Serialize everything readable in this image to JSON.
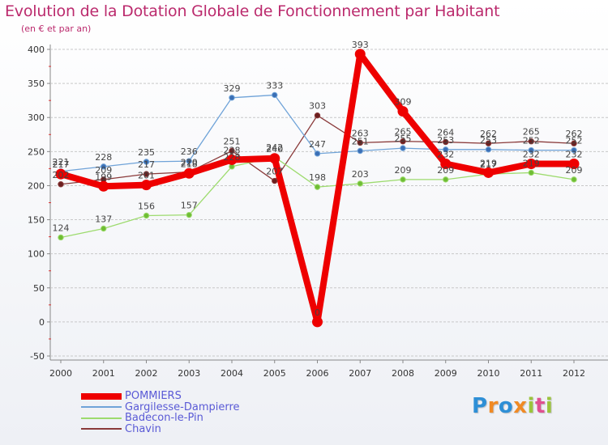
{
  "title": "Evolution de la Dotation Globale de Fonctionnement par Habitant",
  "subtitle": "(en € et par an)",
  "logo": {
    "text": "Proxiti",
    "colors": [
      "#2e8fd6",
      "#f08a24",
      "#2e8fd6",
      "#f08a24",
      "#9bc43c",
      "#e05090",
      "#9bc43c"
    ]
  },
  "chart_data": {
    "type": "line",
    "title": "Evolution de la Dotation Globale de Fonctionnement par Habitant",
    "subtitle": "(en € et par an)",
    "xlabel": "",
    "ylabel": "",
    "ylim": [
      -50,
      400
    ],
    "yticks": [
      -50,
      0,
      50,
      100,
      150,
      200,
      250,
      300,
      350,
      400
    ],
    "x": [
      "2000",
      "2001",
      "2002",
      "2003",
      "2004",
      "2005",
      "2006",
      "2007",
      "2008",
      "2009",
      "2010",
      "2011",
      "2012"
    ],
    "grid": "horizontal",
    "legend_position": "bottom",
    "series": [
      {
        "name": "POMMIERS",
        "color": "#ee0000",
        "emphasis": true,
        "values": [
          217,
          199,
          201,
          218,
          238,
          240,
          0,
          393,
          309,
          232,
          219,
          232,
          232
        ],
        "labels": [
          "217",
          "199",
          "201",
          "218",
          "238",
          "240",
          "0",
          "393",
          "309",
          "232",
          "219",
          "232",
          "232"
        ]
      },
      {
        "name": "Gargilesse-Dampierre",
        "color": "#6fa3d8",
        "point": "#3b6fb5",
        "values": [
          221,
          228,
          235,
          236,
          329,
          333,
          247,
          251,
          255,
          253,
          253,
          252,
          252
        ],
        "labels": [
          "221",
          "228",
          "235",
          "236",
          "329",
          "333",
          "247",
          "251",
          "255",
          "253",
          "253",
          "252",
          "252"
        ]
      },
      {
        "name": "Badecon-le-Pin",
        "color": "#9ddb6e",
        "point": "#6fbd34",
        "values": [
          124,
          137,
          156,
          157,
          228,
          242,
          198,
          203,
          209,
          209,
          217,
          219,
          209
        ],
        "labels": [
          "124",
          "137",
          "156",
          "157",
          "228",
          "242",
          "198",
          "203",
          "209",
          "209",
          "217",
          "219",
          "209"
        ]
      },
      {
        "name": "Chavin",
        "color": "#8a3a3a",
        "point": "#6b1f1f",
        "values": [
          202,
          209,
          217,
          220,
          251,
          207,
          303,
          263,
          265,
          264,
          262,
          265,
          262
        ],
        "labels": [
          "202",
          "209",
          "217",
          "220",
          "251",
          "207",
          "303",
          "263",
          "265",
          "264",
          "262",
          "265",
          "262"
        ]
      }
    ]
  }
}
